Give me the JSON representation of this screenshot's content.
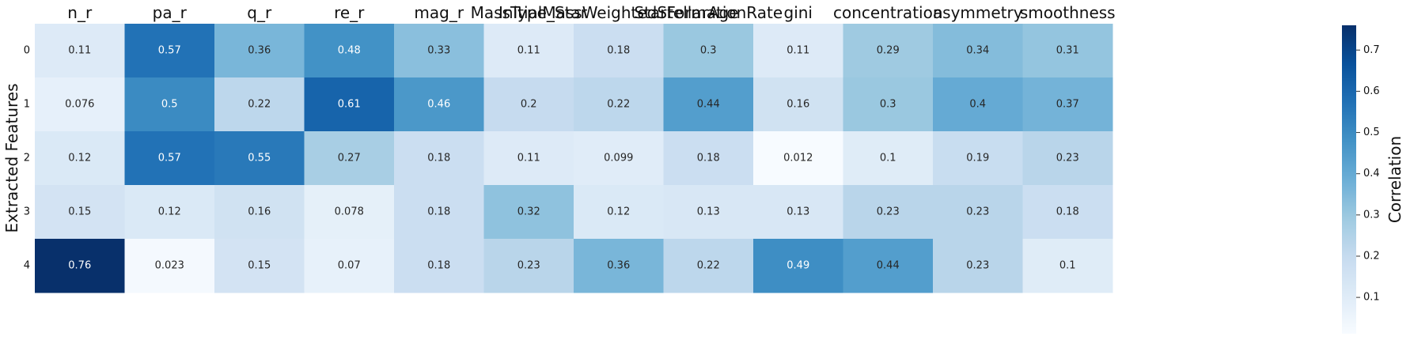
{
  "chart_data": {
    "type": "heatmap",
    "title": "",
    "xlabel": "",
    "ylabel": "Extracted Features",
    "colorbar_label": "Correlation",
    "colormap": "Blues",
    "vmin": 0.012,
    "vmax": 0.76,
    "colorbar_ticks": [
      0.1,
      0.2,
      0.3,
      0.4,
      0.5,
      0.6,
      0.7
    ],
    "columns": [
      "n_r",
      "pa_r",
      "q_r",
      "re_r",
      "mag_r",
      "MassType_Star",
      "InitialMassWeightedStellarAge",
      "StarFormationRate",
      "gini",
      "concentration",
      "asymmetry",
      "smoothness"
    ],
    "rows": [
      "0",
      "1",
      "2",
      "3",
      "4"
    ],
    "values": [
      [
        0.11,
        0.57,
        0.36,
        0.48,
        0.33,
        0.11,
        0.18,
        0.3,
        0.11,
        0.29,
        0.34,
        0.31
      ],
      [
        0.076,
        0.5,
        0.22,
        0.61,
        0.46,
        0.2,
        0.22,
        0.44,
        0.16,
        0.3,
        0.4,
        0.37
      ],
      [
        0.12,
        0.57,
        0.55,
        0.27,
        0.18,
        0.11,
        0.099,
        0.18,
        0.012,
        0.1,
        0.19,
        0.23
      ],
      [
        0.15,
        0.12,
        0.16,
        0.078,
        0.18,
        0.32,
        0.12,
        0.13,
        0.13,
        0.23,
        0.23,
        0.18
      ],
      [
        0.76,
        0.023,
        0.15,
        0.07,
        0.18,
        0.23,
        0.36,
        0.22,
        0.49,
        0.44,
        0.23,
        0.1
      ]
    ],
    "color_stops": [
      "#f7fbff",
      "#deebf7",
      "#c6dbef",
      "#9ecae1",
      "#6baed6",
      "#4292c6",
      "#2171b5",
      "#08519c",
      "#08306b"
    ]
  }
}
